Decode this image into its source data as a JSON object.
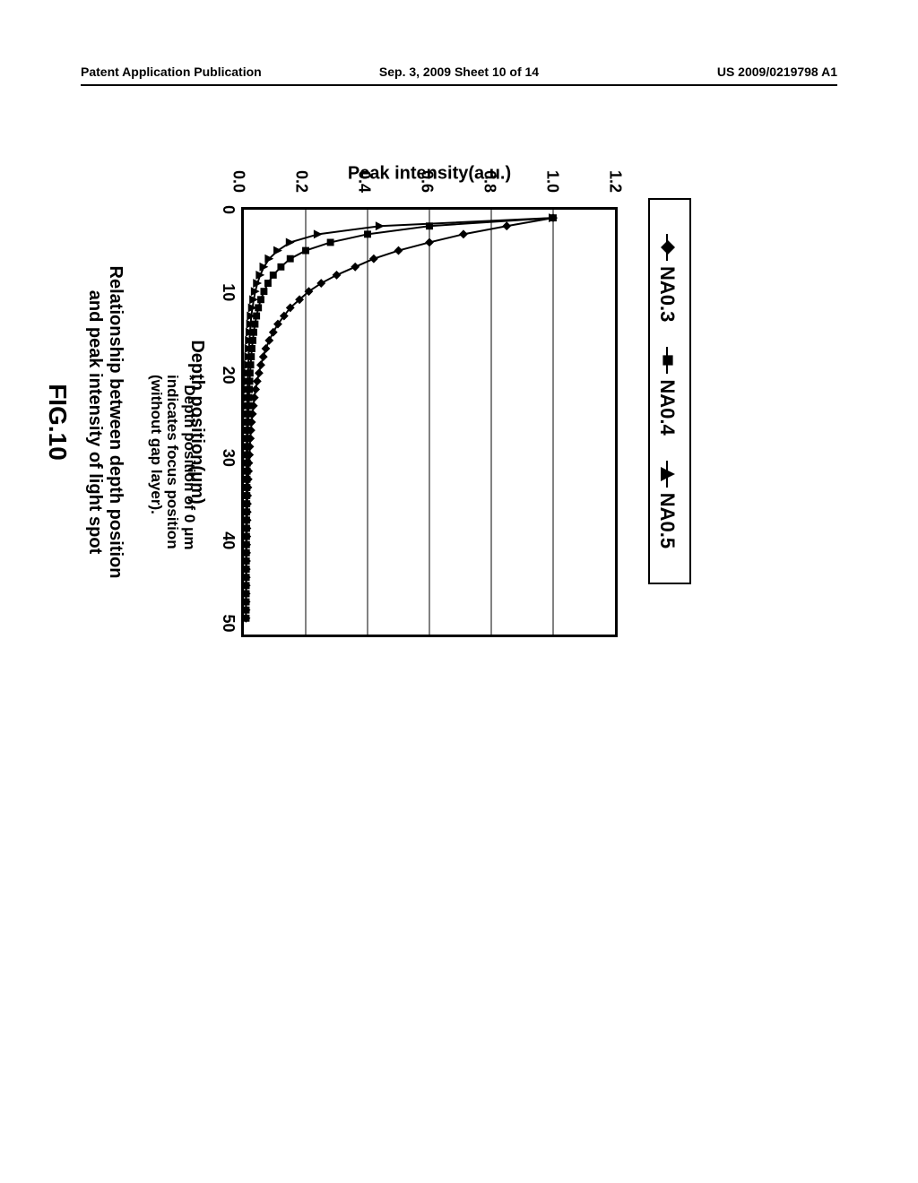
{
  "header": {
    "left": "Patent Application Publication",
    "center": "Sep. 3, 2009  Sheet 10 of 14",
    "right": "US 2009/0219798 A1"
  },
  "figure": {
    "legend": {
      "items": [
        {
          "label": "NA0.3",
          "marker": "diamond"
        },
        {
          "label": "NA0.4",
          "marker": "square"
        },
        {
          "label": "NA0.5",
          "marker": "triangle"
        }
      ]
    },
    "chart": {
      "type": "line",
      "background_color": "#ffffff",
      "border_color": "#000000",
      "grid_color": "#000000",
      "line_color": "#000000",
      "marker_fill": "#000000",
      "yaxis_label": "Peak intensity(a.u.)",
      "xaxis_label": "Depth position(μm)",
      "xlim": [
        0,
        52
      ],
      "ylim": [
        0.0,
        1.2
      ],
      "yticks": [
        0.0,
        0.2,
        0.4,
        0.6,
        0.8,
        1.0,
        1.2
      ],
      "ytick_labels": [
        "0.0",
        "0.2",
        "0.4",
        "0.6",
        "0.8",
        "1.0",
        "1.2"
      ],
      "xticks": [
        0,
        10,
        20,
        30,
        40,
        50
      ],
      "xtick_labels": [
        "0",
        "10",
        "20",
        "30",
        "40",
        "50"
      ],
      "series": [
        {
          "name": "NA0.3",
          "marker": "diamond",
          "x": [
            1,
            2,
            3,
            4,
            5,
            6,
            7,
            8,
            9,
            10,
            11,
            12,
            13,
            14,
            15,
            16,
            17,
            18,
            19,
            20,
            21,
            22,
            23,
            24,
            25,
            26,
            27,
            28,
            29,
            30,
            31,
            32,
            33,
            34,
            35,
            36,
            37,
            38,
            39,
            40,
            41,
            42,
            43,
            44,
            45,
            46,
            47,
            48,
            49,
            50
          ],
          "y": [
            1.0,
            0.85,
            0.71,
            0.6,
            0.5,
            0.42,
            0.36,
            0.3,
            0.25,
            0.21,
            0.18,
            0.15,
            0.13,
            0.11,
            0.095,
            0.082,
            0.071,
            0.063,
            0.055,
            0.049,
            0.043,
            0.038,
            0.034,
            0.031,
            0.028,
            0.025,
            0.023,
            0.021,
            0.019,
            0.018,
            0.016,
            0.015,
            0.014,
            0.013,
            0.012,
            0.0115,
            0.011,
            0.0105,
            0.01,
            0.0095,
            0.009,
            0.0088,
            0.0085,
            0.0082,
            0.008,
            0.0078,
            0.0076,
            0.0074,
            0.0072,
            0.007
          ]
        },
        {
          "name": "NA0.4",
          "marker": "square",
          "x": [
            1,
            2,
            3,
            4,
            5,
            6,
            7,
            8,
            9,
            10,
            11,
            12,
            13,
            14,
            15,
            16,
            17,
            18,
            19,
            20,
            21,
            22,
            23,
            24,
            25,
            26,
            27,
            28,
            29,
            30,
            31,
            32,
            33,
            34,
            35,
            36,
            37,
            38,
            39,
            40,
            41,
            42,
            43,
            44,
            45,
            46,
            47,
            48,
            49,
            50
          ],
          "y": [
            1.0,
            0.6,
            0.4,
            0.28,
            0.2,
            0.15,
            0.12,
            0.095,
            0.078,
            0.065,
            0.055,
            0.047,
            0.041,
            0.036,
            0.032,
            0.029,
            0.026,
            0.024,
            0.022,
            0.02,
            0.019,
            0.0175,
            0.0165,
            0.0155,
            0.0145,
            0.014,
            0.013,
            0.0125,
            0.012,
            0.0115,
            0.011,
            0.0105,
            0.01,
            0.0098,
            0.0095,
            0.0092,
            0.009,
            0.0088,
            0.0086,
            0.0084,
            0.0082,
            0.008,
            0.0078,
            0.0077,
            0.0076,
            0.0075,
            0.0074,
            0.0073,
            0.0072,
            0.0071
          ]
        },
        {
          "name": "NA0.5",
          "marker": "triangle",
          "x": [
            1,
            2,
            3,
            4,
            5,
            6,
            7,
            8,
            9,
            10,
            11,
            12,
            13,
            14,
            15,
            16,
            17,
            18,
            19,
            20,
            21,
            22,
            23,
            24,
            25,
            26,
            27,
            28,
            29,
            30,
            31,
            32,
            33,
            34,
            35,
            36,
            37,
            38,
            39,
            40,
            41,
            42,
            43,
            44,
            45,
            46,
            47,
            48,
            49,
            50
          ],
          "y": [
            1.0,
            0.44,
            0.24,
            0.15,
            0.11,
            0.082,
            0.065,
            0.053,
            0.044,
            0.037,
            0.032,
            0.028,
            0.024,
            0.022,
            0.02,
            0.018,
            0.0165,
            0.0155,
            0.0145,
            0.0135,
            0.013,
            0.0122,
            0.0116,
            0.011,
            0.0106,
            0.0102,
            0.0098,
            0.0095,
            0.0092,
            0.009,
            0.0088,
            0.0086,
            0.0084,
            0.0082,
            0.008,
            0.0079,
            0.0078,
            0.0077,
            0.0076,
            0.0075,
            0.0074,
            0.0073,
            0.0072,
            0.00715,
            0.0071,
            0.00705,
            0.007,
            0.00698,
            0.00695,
            0.0069
          ]
        }
      ],
      "label_fontsize": 20,
      "tick_fontsize": 18,
      "line_width": 2,
      "marker_size": 6,
      "grid_on": true
    },
    "footnote": "* Depth position of 0 μm indicates focus position (without gap layer).",
    "caption": "Relationship between depth position\nand peak intensity of light spot",
    "fig_label": "FIG.10"
  }
}
